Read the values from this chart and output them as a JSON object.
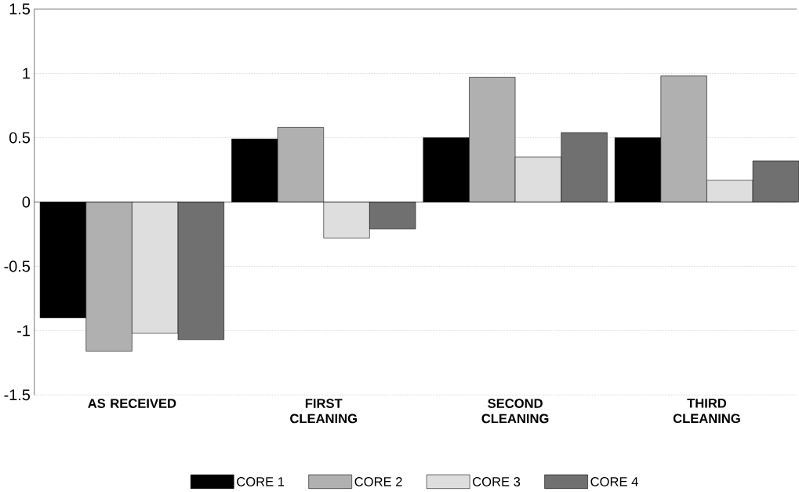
{
  "chart_data": {
    "type": "bar",
    "categories": [
      "AS RECEIVED",
      "FIRST CLEANING",
      "SECOND CLEANING",
      "THIRD CLEANING"
    ],
    "series": [
      {
        "name": "CORE 1",
        "color": "#000000",
        "values": [
          -0.9,
          0.49,
          0.5,
          0.5
        ]
      },
      {
        "name": "CORE 2",
        "color": "#b0b0b0",
        "values": [
          -1.16,
          0.58,
          0.97,
          0.98
        ]
      },
      {
        "name": "CORE 3",
        "color": "#dedede",
        "values": [
          -1.02,
          -0.28,
          0.35,
          0.17
        ]
      },
      {
        "name": "CORE 4",
        "color": "#707070",
        "values": [
          -1.07,
          -0.21,
          0.54,
          0.32
        ]
      }
    ],
    "ylim": [
      -1.5,
      1.5
    ],
    "yticks": [
      -1.5,
      -1,
      -0.5,
      0,
      0.5,
      1,
      1.5
    ],
    "grid": "y",
    "legend": "bottom"
  }
}
